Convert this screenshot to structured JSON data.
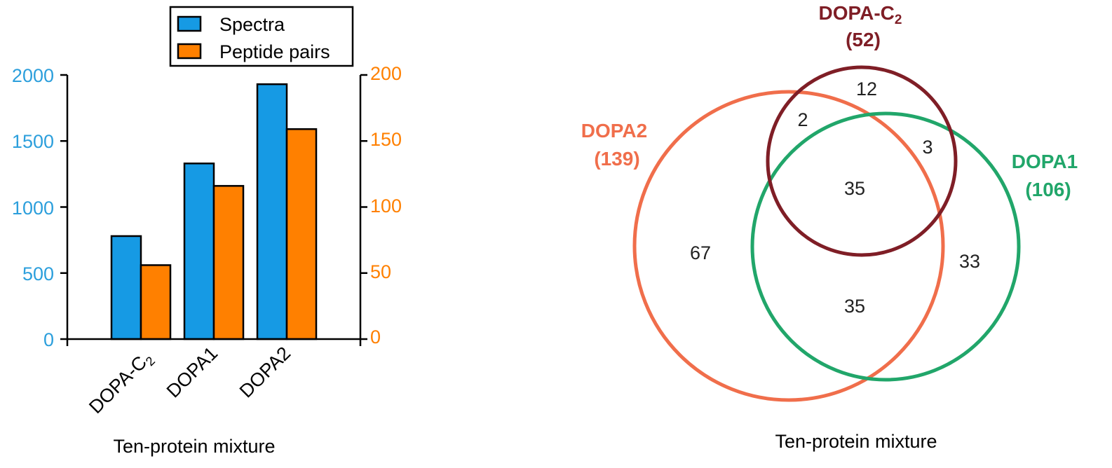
{
  "colors": {
    "spectra": "#169ae4",
    "peptide": "#ff8000",
    "left_axis": "#2c9fdc",
    "right_axis": "#ff8000",
    "dopa_c2": "#7f1e26",
    "dopa2": "#f06e4b",
    "dopa1": "#21a66a",
    "axis": "#000000"
  },
  "chart_data": [
    {
      "type": "bar",
      "categories": [
        "DOPA-C2",
        "DOPA1",
        "DOPA2"
      ],
      "category_labels": [
        {
          "main": "DOPA-C",
          "sub": "2"
        },
        {
          "main": "DOPA1",
          "sub": ""
        },
        {
          "main": "DOPA2",
          "sub": ""
        }
      ],
      "series": [
        {
          "name": "Spectra",
          "axis": "left",
          "values": [
            780,
            1330,
            1930
          ]
        },
        {
          "name": "Peptide pairs",
          "axis": "right",
          "values": [
            56,
            116,
            159
          ]
        }
      ],
      "xlabel": "Ten-protein mixture",
      "ylim_left": [
        0,
        2000
      ],
      "ylim_right": [
        0,
        200
      ],
      "yticks_left": [
        "0",
        "500",
        "1000",
        "1500",
        "2000"
      ],
      "yticks_right": [
        "0",
        "50",
        "100",
        "150",
        "200"
      ],
      "legend": "top",
      "grid": false
    },
    {
      "type": "venn",
      "sets": [
        {
          "name": "DOPA-C",
          "sub": "2",
          "count": "(52)"
        },
        {
          "name": "DOPA2",
          "sub": "",
          "count": "(139)"
        },
        {
          "name": "DOPA1",
          "sub": "",
          "count": "(106)"
        }
      ],
      "regions": {
        "only_dopa_c2": "12",
        "dopa_c2_and_dopa2": "2",
        "dopa_c2_and_dopa1": "3",
        "all_three": "35",
        "only_dopa2": "67",
        "only_dopa1": "33",
        "dopa2_and_dopa1": "35"
      },
      "xlabel": "Ten-protein mixture"
    }
  ]
}
